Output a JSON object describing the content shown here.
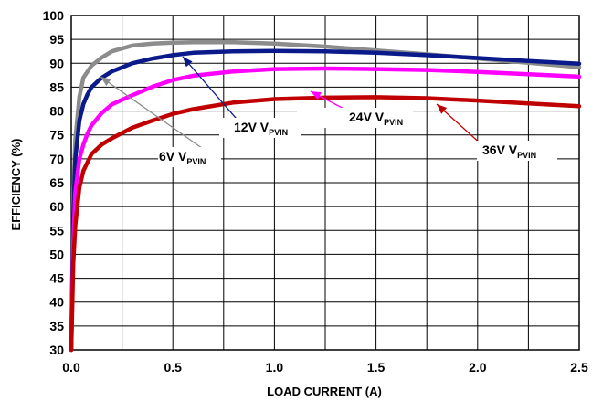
{
  "chart_data": {
    "type": "line",
    "title": "",
    "xlabel": "LOAD CURRENT (A)",
    "ylabel": "EFFICIENCY (%)",
    "xlim": [
      0,
      2.5
    ],
    "ylim": [
      30,
      100
    ],
    "xticks": [
      0.0,
      0.5,
      1.0,
      1.5,
      2.0,
      2.5
    ],
    "xtick_labels": [
      "0.0",
      "0.5",
      "1.0",
      "1.5",
      "2.0",
      "2.5"
    ],
    "yticks": [
      30,
      35,
      40,
      45,
      50,
      55,
      60,
      65,
      70,
      75,
      80,
      85,
      90,
      95,
      100
    ],
    "ytick_labels": [
      "30",
      "35",
      "40",
      "45",
      "50",
      "55",
      "60",
      "65",
      "70",
      "75",
      "80",
      "85",
      "90",
      "95",
      "100"
    ],
    "grid": true,
    "series": [
      {
        "name": "6V VPVIN",
        "label_main": "6V V",
        "label_sub": "PVIN",
        "color": "#8c8c8c",
        "x": [
          0.0,
          0.01,
          0.02,
          0.04,
          0.06,
          0.1,
          0.15,
          0.2,
          0.3,
          0.4,
          0.5,
          0.6,
          0.8,
          1.0,
          1.25,
          1.5,
          1.75,
          2.0,
          2.25,
          2.5
        ],
        "y": [
          30,
          62,
          74,
          83,
          87,
          89.5,
          91.2,
          92.5,
          93.7,
          94.1,
          94.3,
          94.4,
          94.4,
          94.1,
          93.5,
          92.7,
          91.9,
          91.0,
          90.1,
          89.2
        ]
      },
      {
        "name": "12V VPVIN",
        "label_main": "12V V",
        "label_sub": "PVIN",
        "color": "#0a1a8a",
        "x": [
          0.0,
          0.01,
          0.02,
          0.04,
          0.06,
          0.08,
          0.1,
          0.15,
          0.2,
          0.3,
          0.4,
          0.5,
          0.6,
          0.8,
          1.0,
          1.25,
          1.5,
          1.75,
          2.0,
          2.25,
          2.5
        ],
        "y": [
          30,
          58,
          70,
          78,
          81.5,
          83.5,
          85,
          87,
          88.3,
          90,
          91,
          91.7,
          92.2,
          92.5,
          92.6,
          92.5,
          92.2,
          91.7,
          91.1,
          90.5,
          89.9
        ]
      },
      {
        "name": "24V VPVIN",
        "label_main": "24V V",
        "label_sub": "PVIN",
        "color": "#ff00ff",
        "x": [
          0.0,
          0.01,
          0.02,
          0.04,
          0.06,
          0.08,
          0.1,
          0.15,
          0.2,
          0.3,
          0.4,
          0.5,
          0.6,
          0.8,
          1.0,
          1.25,
          1.5,
          1.75,
          2.0,
          2.25,
          2.5
        ],
        "y": [
          30,
          52,
          63,
          70,
          73,
          75.3,
          77,
          79.6,
          81.4,
          83.3,
          85.1,
          86.5,
          87.4,
          88.3,
          88.8,
          88.9,
          88.8,
          88.6,
          88.2,
          87.7,
          87.2
        ]
      },
      {
        "name": "36V VPVIN",
        "label_main": "36V V",
        "label_sub": "PVIN",
        "color": "#c00000",
        "x": [
          0.0,
          0.01,
          0.02,
          0.04,
          0.06,
          0.1,
          0.15,
          0.2,
          0.3,
          0.4,
          0.5,
          0.6,
          0.8,
          1.0,
          1.25,
          1.5,
          1.75,
          2.0,
          2.25,
          2.5
        ],
        "y": [
          30,
          48,
          56,
          64,
          67.5,
          71,
          73,
          74.3,
          76.5,
          78,
          79.4,
          80.4,
          81.8,
          82.5,
          82.8,
          82.9,
          82.7,
          82.2,
          81.6,
          81.0
        ]
      }
    ]
  }
}
